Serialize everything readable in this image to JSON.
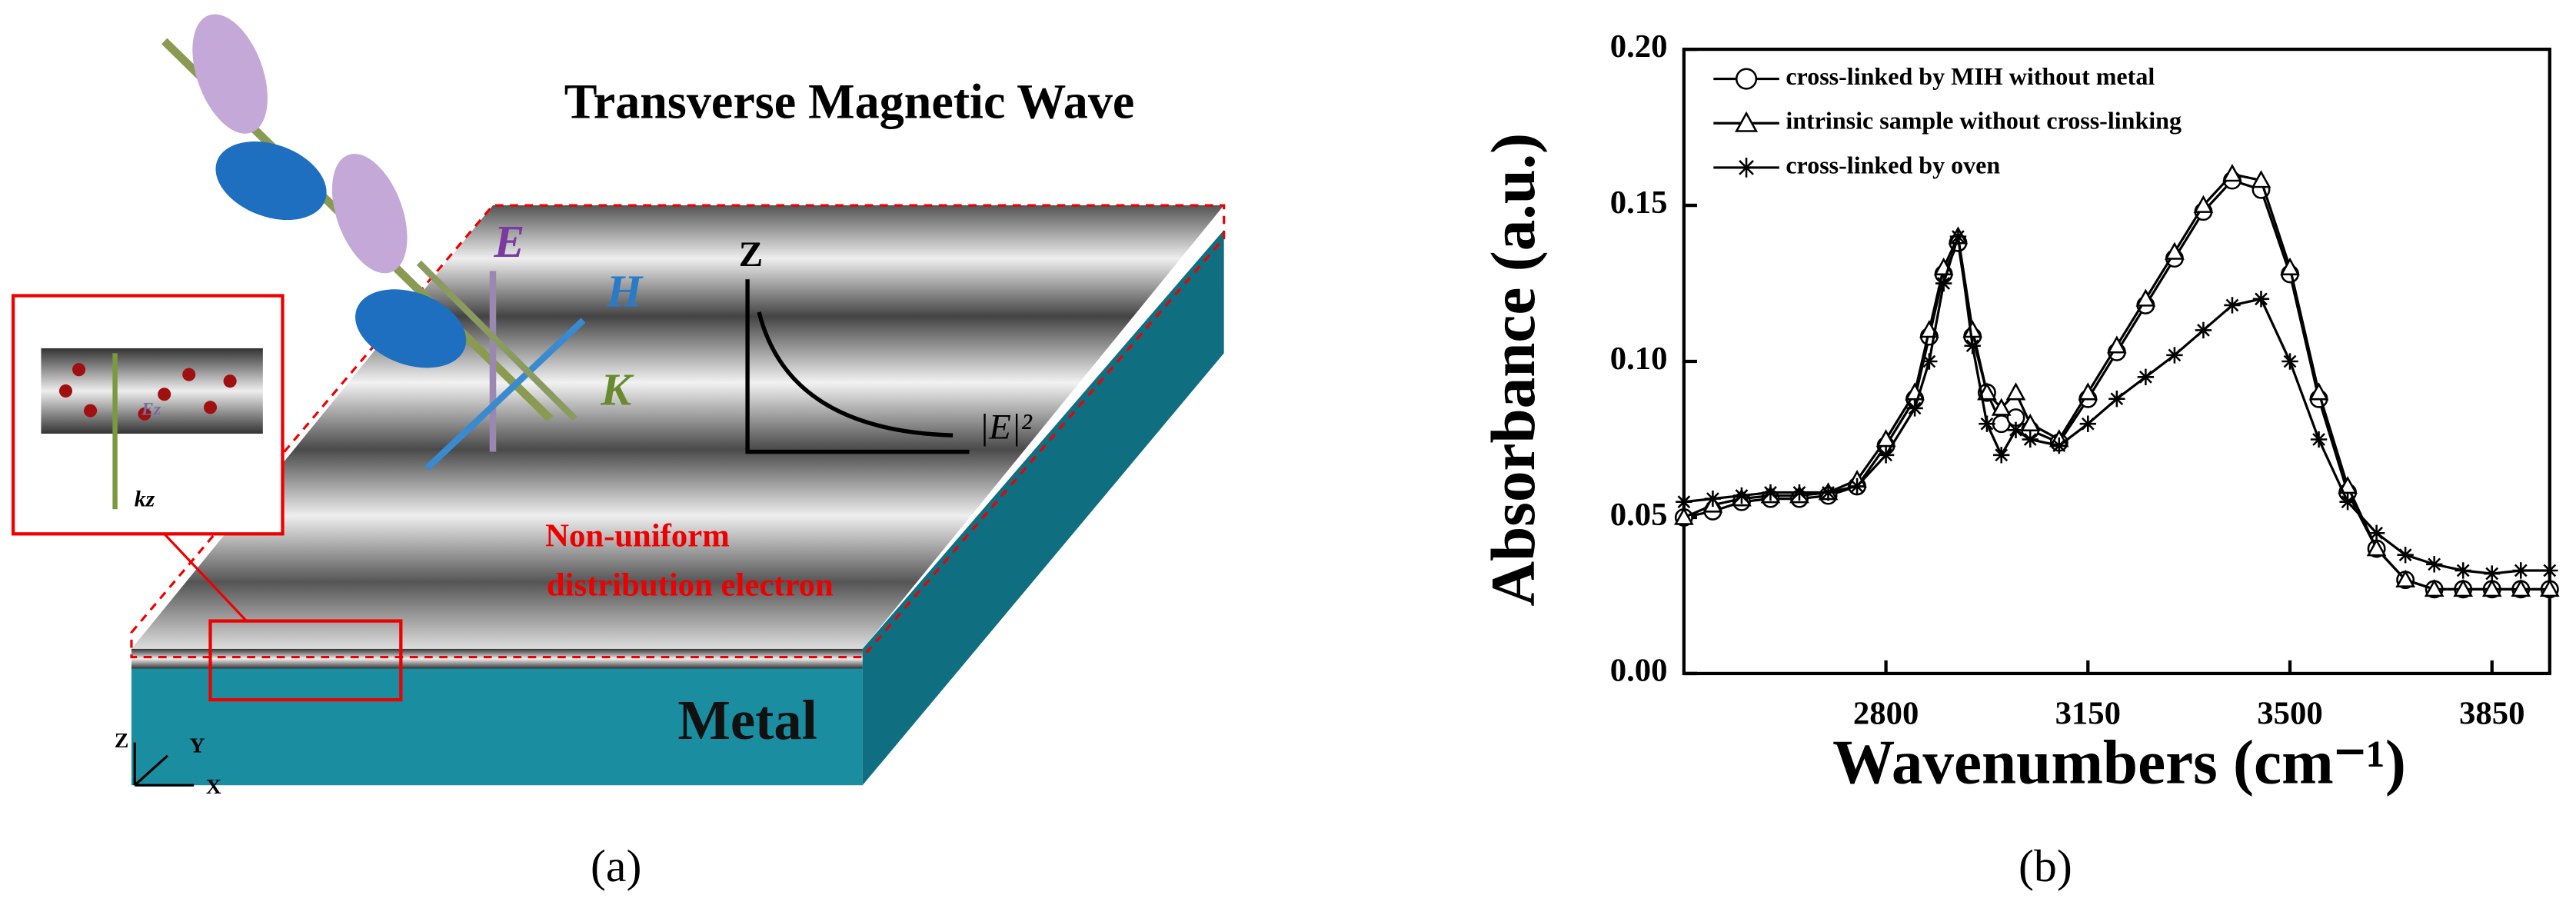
{
  "diagram": {
    "title": "Transverse Magnetic Wave",
    "field_labels": [
      "E",
      "H",
      "K"
    ],
    "graph": {
      "axis_z": "Z",
      "axis_e": "|E|²"
    },
    "annotation": [
      "Non-uniform",
      "distribution electron"
    ],
    "material": "Metal",
    "coords": [
      "Z",
      "Y",
      "X"
    ],
    "inset": [
      "Ez",
      "kz"
    ]
  },
  "captions": [
    "(a)",
    "(b)"
  ],
  "chart_data": {
    "type": "line",
    "ylabel": "Absorbance (a.u.)",
    "xlabel": "Wavenumbers (cm⁻¹)",
    "x": [
      2450,
      2500,
      2550,
      2600,
      2650,
      2700,
      2750,
      2800,
      2850,
      2875,
      2900,
      2925,
      2950,
      2975,
      3000,
      3025,
      3050,
      3100,
      3150,
      3200,
      3250,
      3300,
      3350,
      3400,
      3450,
      3500,
      3550,
      3600,
      3650,
      3700,
      3750,
      3800,
      3850,
      3900,
      3950
    ],
    "series": [
      {
        "name": "cross-linked by MIH without metal",
        "color": "#000000",
        "marker": "circle",
        "values": [
          0.05,
          0.052,
          0.055,
          0.056,
          0.056,
          0.057,
          0.06,
          0.073,
          0.088,
          0.108,
          0.128,
          0.138,
          0.108,
          0.09,
          0.08,
          0.082,
          0.078,
          0.074,
          0.088,
          0.103,
          0.118,
          0.133,
          0.148,
          0.158,
          0.155,
          0.128,
          0.088,
          0.058,
          0.04,
          0.03,
          0.027,
          0.027,
          0.027,
          0.027,
          0.027
        ]
      },
      {
        "name": "intrinsic sample without cross-linking",
        "color": "#000000",
        "marker": "triangle",
        "values": [
          0.05,
          0.054,
          0.056,
          0.057,
          0.057,
          0.058,
          0.062,
          0.075,
          0.09,
          0.11,
          0.13,
          0.14,
          0.11,
          0.09,
          0.085,
          0.09,
          0.08,
          0.075,
          0.09,
          0.105,
          0.12,
          0.135,
          0.15,
          0.16,
          0.158,
          0.13,
          0.09,
          0.06,
          0.04,
          0.03,
          0.027,
          0.027,
          0.027,
          0.027,
          0.027
        ]
      },
      {
        "name": "cross-linked by oven",
        "color": "#000000",
        "marker": "star",
        "values": [
          0.055,
          0.056,
          0.057,
          0.058,
          0.058,
          0.058,
          0.06,
          0.07,
          0.085,
          0.1,
          0.125,
          0.14,
          0.105,
          0.08,
          0.07,
          0.078,
          0.075,
          0.073,
          0.08,
          0.088,
          0.095,
          0.102,
          0.11,
          0.118,
          0.12,
          0.1,
          0.075,
          0.055,
          0.045,
          0.038,
          0.035,
          0.033,
          0.032,
          0.033,
          0.033
        ]
      }
    ],
    "xlim": [
      2450,
      3950
    ],
    "xticks": [
      2800,
      3150,
      3500,
      3850
    ],
    "ylim": [
      0,
      0.2
    ],
    "yticks": [
      {
        "value": 0,
        "label": "0.00"
      },
      0.05,
      {
        "value": 0.1,
        "label": "0.10"
      },
      0.15,
      {
        "value": 0.2,
        "label": "0.20"
      }
    ],
    "legend": "upper left",
    "grid": false
  }
}
